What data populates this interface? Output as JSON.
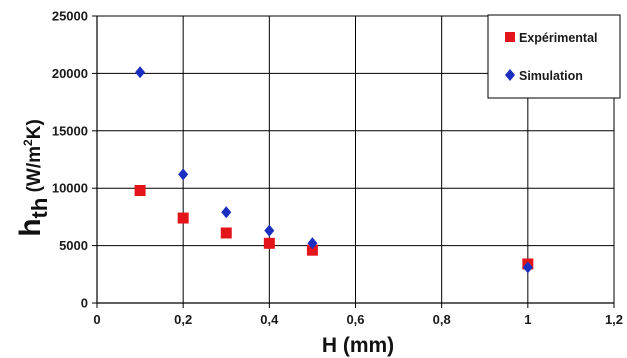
{
  "chart_data": {
    "type": "scatter",
    "title": "",
    "xlabel": "H (mm)",
    "ylabel": {
      "main": "h",
      "sub": "th",
      "unit_pre": " (W/m",
      "unit_sup": "2",
      "unit_post": "K)"
    },
    "xlim": [
      0,
      1.2
    ],
    "ylim": [
      0,
      25000
    ],
    "xticks": [
      0,
      0.2,
      0.4,
      0.6,
      0.8,
      1,
      1.2
    ],
    "xtick_labels": [
      "0",
      "0,2",
      "0,4",
      "0,6",
      "0,8",
      "1",
      "1,2"
    ],
    "yticks": [
      0,
      5000,
      10000,
      15000,
      20000,
      25000
    ],
    "ytick_labels": [
      "0",
      "5000",
      "10000",
      "15000",
      "20000",
      "25000"
    ],
    "grid": true,
    "legend_position": "top-right",
    "series": [
      {
        "name": "Expérimental",
        "marker": "square",
        "color": "#e4141b",
        "x": [
          0.1,
          0.2,
          0.3,
          0.4,
          0.5,
          1.0
        ],
        "y": [
          9800,
          7400,
          6100,
          5200,
          4600,
          3400
        ]
      },
      {
        "name": "Simulation",
        "marker": "diamond",
        "color": "#1a2ebf",
        "x": [
          0.1,
          0.2,
          0.3,
          0.4,
          0.5,
          1.0
        ],
        "y": [
          20100,
          11200,
          7900,
          6300,
          5200,
          3100
        ]
      }
    ]
  }
}
